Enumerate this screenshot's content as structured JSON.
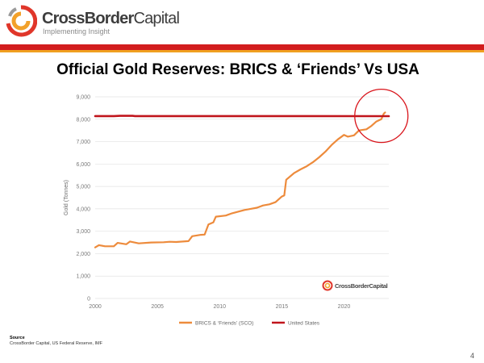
{
  "header": {
    "brand_bold": "CrossBorder",
    "brand_light": "Capital",
    "tagline": "Implementing Insight"
  },
  "slide": {
    "title": "Official Gold Reserves: BRICS & ‘Friends’ Vs USA",
    "source_label": "Source",
    "source_text": "CrossBorder Capital, US Federal Reserve, IMF",
    "page_number": "4"
  },
  "chart_data": {
    "type": "line",
    "title": "",
    "xlabel": "",
    "ylabel": "Gold (Tonnes)",
    "xlim": [
      2000,
      2023.6
    ],
    "ylim": [
      0,
      9000
    ],
    "x_ticks": [
      "2000",
      "2005",
      "2010",
      "2015",
      "2020"
    ],
    "y_ticks": [
      "0",
      "1,000",
      "2,000",
      "3,000",
      "4,000",
      "5,000",
      "6,000",
      "7,000",
      "8,000",
      "9,000"
    ],
    "grid": true,
    "legend_position": "bottom",
    "watermark": "CrossBorderCapital",
    "series": [
      {
        "name": "BRICS & ‘Friends’ (SCO)",
        "color": "#ed8b3c",
        "points": [
          [
            2000.0,
            2280
          ],
          [
            2000.3,
            2380
          ],
          [
            2000.8,
            2330
          ],
          [
            2001.5,
            2330
          ],
          [
            2001.8,
            2480
          ],
          [
            2002.5,
            2420
          ],
          [
            2002.8,
            2540
          ],
          [
            2003.5,
            2460
          ],
          [
            2004.5,
            2500
          ],
          [
            2005.5,
            2510
          ],
          [
            2006.0,
            2530
          ],
          [
            2006.5,
            2520
          ],
          [
            2007.5,
            2560
          ],
          [
            2007.8,
            2780
          ],
          [
            2008.5,
            2840
          ],
          [
            2008.8,
            2850
          ],
          [
            2009.1,
            3300
          ],
          [
            2009.5,
            3400
          ],
          [
            2009.7,
            3650
          ],
          [
            2010.5,
            3700
          ],
          [
            2011.0,
            3800
          ],
          [
            2012.0,
            3950
          ],
          [
            2012.5,
            4000
          ],
          [
            2013.0,
            4050
          ],
          [
            2013.5,
            4150
          ],
          [
            2014.0,
            4200
          ],
          [
            2014.5,
            4300
          ],
          [
            2015.0,
            4550
          ],
          [
            2015.2,
            4600
          ],
          [
            2015.35,
            5300
          ],
          [
            2016.0,
            5600
          ],
          [
            2016.5,
            5760
          ],
          [
            2017.0,
            5900
          ],
          [
            2017.5,
            6080
          ],
          [
            2018.0,
            6300
          ],
          [
            2018.5,
            6550
          ],
          [
            2019.0,
            6850
          ],
          [
            2019.5,
            7100
          ],
          [
            2020.0,
            7300
          ],
          [
            2020.3,
            7220
          ],
          [
            2020.8,
            7280
          ],
          [
            2021.2,
            7500
          ],
          [
            2021.8,
            7550
          ],
          [
            2022.2,
            7700
          ],
          [
            2022.6,
            7900
          ],
          [
            2023.0,
            8000
          ],
          [
            2023.2,
            8250
          ],
          [
            2023.3,
            8300
          ]
        ]
      },
      {
        "name": "United States",
        "color": "#c0151c",
        "points": [
          [
            2000.0,
            8140
          ],
          [
            2001.5,
            8140
          ],
          [
            2002.0,
            8150
          ],
          [
            2003.0,
            8150
          ],
          [
            2003.2,
            8140
          ],
          [
            2023.6,
            8135
          ]
        ]
      }
    ],
    "annotation": {
      "shape": "circle",
      "color": "#d9141b",
      "center": [
        2023.0,
        8150
      ]
    }
  }
}
